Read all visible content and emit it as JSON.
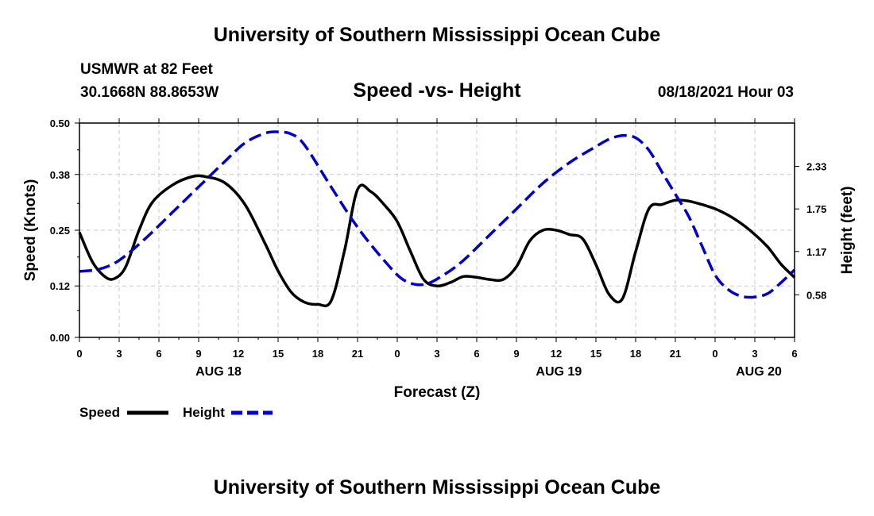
{
  "header": {
    "title": "University of Southern Mississippi Ocean Cube",
    "station": "USMWR at 82 Feet",
    "coordinates": "30.1668N  88.8653W",
    "subtitle": "Speed -vs- Height",
    "datetime": "08/18/2021 Hour 03"
  },
  "footer": {
    "title": "University of Southern Mississippi Ocean Cube"
  },
  "chart_data": {
    "type": "line",
    "xlabel": "Forecast (Z)",
    "ylabel_left": "Speed (Knots)",
    "ylabel_right": "Height (feet)",
    "xlim": [
      0,
      54
    ],
    "ylim_left": [
      0,
      0.5
    ],
    "ylim_right": [
      0,
      2.92
    ],
    "grid": true,
    "x_ticks": [
      0,
      3,
      6,
      9,
      12,
      15,
      18,
      21,
      24,
      27,
      30,
      33,
      36,
      39,
      42,
      45,
      48,
      51,
      54
    ],
    "x_tick_labels": [
      "0",
      "3",
      "6",
      "9",
      "12",
      "15",
      "18",
      "21",
      "0",
      "3",
      "6",
      "9",
      "12",
      "15",
      "18",
      "21",
      "0",
      "3",
      "6"
    ],
    "y_left_ticks": [
      0,
      0.12,
      0.25,
      0.38,
      0.5
    ],
    "y_left_tick_labels": [
      "0.00",
      "0.12",
      "0.25",
      "0.38",
      "0.50"
    ],
    "y_right_ticks": [
      0.58,
      1.17,
      1.75,
      2.33
    ],
    "y_right_tick_labels": [
      "0.58",
      "1.17",
      "1.75",
      "2.33"
    ],
    "date_labels": [
      {
        "x": 10.5,
        "label": "AUG 18"
      },
      {
        "x": 36.2,
        "label": "AUG 19"
      },
      {
        "x": 51.3,
        "label": "AUG 20"
      }
    ],
    "legend": [
      {
        "name": "Speed",
        "color": "#000000",
        "style": "solid"
      },
      {
        "name": "Height",
        "color": "#0000cc",
        "style": "dashed"
      }
    ],
    "series": [
      {
        "name": "Speed",
        "axis": "left",
        "color": "#000000",
        "x": [
          0,
          1,
          2,
          2.7,
          3.5,
          4.5,
          5.5,
          7,
          8.5,
          9.5,
          11,
          12.5,
          14,
          15,
          16,
          17,
          18,
          19,
          20,
          21,
          22,
          23,
          24,
          25,
          26,
          27,
          28,
          29,
          30,
          31,
          32,
          33,
          34,
          35,
          36,
          37,
          38,
          39,
          40,
          41,
          42,
          43,
          44,
          45,
          46,
          47,
          48,
          49,
          50,
          51,
          52,
          53,
          54
        ],
        "y": [
          0.245,
          0.175,
          0.14,
          0.138,
          0.165,
          0.25,
          0.315,
          0.355,
          0.375,
          0.375,
          0.36,
          0.31,
          0.22,
          0.155,
          0.105,
          0.082,
          0.077,
          0.085,
          0.2,
          0.345,
          0.34,
          0.31,
          0.27,
          0.2,
          0.135,
          0.12,
          0.128,
          0.142,
          0.14,
          0.135,
          0.135,
          0.165,
          0.225,
          0.25,
          0.25,
          0.24,
          0.23,
          0.17,
          0.1,
          0.09,
          0.2,
          0.3,
          0.31,
          0.32,
          0.318,
          0.31,
          0.3,
          0.285,
          0.265,
          0.24,
          0.21,
          0.17,
          0.14
        ]
      },
      {
        "name": "Height",
        "axis": "right",
        "color": "#0000cc",
        "x": [
          0,
          1.5,
          3,
          5,
          7,
          9,
          11,
          12.5,
          14,
          15,
          16,
          17,
          19,
          21,
          23,
          24.5,
          26,
          27.5,
          29,
          31,
          33,
          35,
          37,
          39,
          40,
          41,
          42,
          43,
          44,
          45,
          46,
          47,
          48,
          49,
          50,
          51,
          52,
          53,
          54
        ],
        "y": [
          0.9,
          0.93,
          1.05,
          1.35,
          1.7,
          2.05,
          2.4,
          2.65,
          2.78,
          2.8,
          2.77,
          2.62,
          2.05,
          1.5,
          1.05,
          0.78,
          0.72,
          0.85,
          1.05,
          1.4,
          1.75,
          2.1,
          2.38,
          2.6,
          2.7,
          2.75,
          2.72,
          2.55,
          2.25,
          1.95,
          1.65,
          1.25,
          0.85,
          0.65,
          0.56,
          0.55,
          0.6,
          0.75,
          0.92
        ]
      }
    ]
  }
}
